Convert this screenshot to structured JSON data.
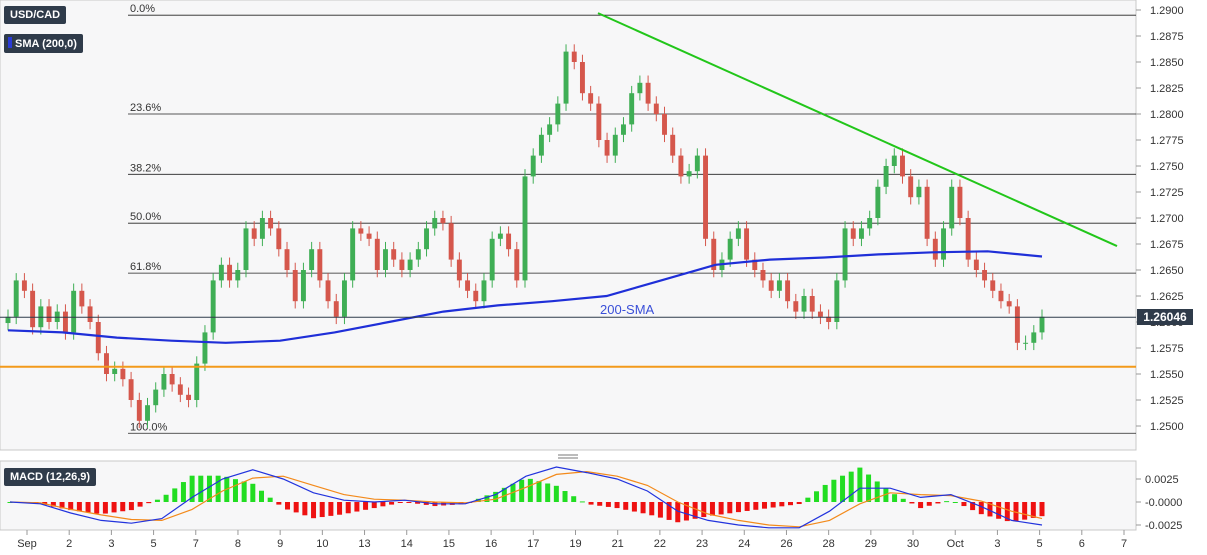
{
  "chart_data": {
    "type": "candlestick",
    "symbol": "USD/CAD",
    "indicator_label": "SMA (200,0)",
    "sma_label": "200-SMA",
    "last_price": "1.26046",
    "last_price_value": 1.26046,
    "support_level": 1.2557,
    "trendline": {
      "start": 1.2897,
      "end": 1.2673
    },
    "price_axis": {
      "min": 1.248,
      "max": 1.2905,
      "ticks": [
        "1.2900",
        "1.2875",
        "1.2850",
        "1.2825",
        "1.2800",
        "1.2775",
        "1.2750",
        "1.2725",
        "1.2700",
        "1.2675",
        "1.2650",
        "1.2625",
        "1.2600",
        "1.2575",
        "1.2550",
        "1.2525",
        "1.2500"
      ]
    },
    "fib_levels": [
      {
        "label": "0.0%",
        "value": 1.2895
      },
      {
        "label": "23.6%",
        "value": 1.28
      },
      {
        "label": "38.2%",
        "value": 1.2742
      },
      {
        "label": "50.0%",
        "value": 1.2695
      },
      {
        "label": "61.8%",
        "value": 1.2647
      },
      {
        "label": "100.0%",
        "value": 1.2493
      }
    ],
    "x_labels": [
      "Sep",
      "2",
      "3",
      "5",
      "7",
      "8",
      "9",
      "10",
      "13",
      "14",
      "15",
      "16",
      "17",
      "19",
      "21",
      "22",
      "23",
      "24",
      "26",
      "28",
      "29",
      "30",
      "Oct",
      "3",
      "5",
      "6",
      "7"
    ],
    "candles_close": [
      1.2605,
      1.264,
      1.263,
      1.2595,
      1.2615,
      1.26,
      1.261,
      1.259,
      1.263,
      1.2615,
      1.26,
      1.257,
      1.255,
      1.2555,
      1.2545,
      1.2525,
      1.2505,
      1.252,
      1.2535,
      1.255,
      1.254,
      1.253,
      1.2525,
      1.256,
      1.259,
      1.264,
      1.2655,
      1.264,
      1.265,
      1.269,
      1.268,
      1.27,
      1.269,
      1.267,
      1.265,
      1.262,
      1.265,
      1.267,
      1.264,
      1.262,
      1.2605,
      1.264,
      1.269,
      1.2685,
      1.268,
      1.265,
      1.267,
      1.266,
      1.265,
      1.266,
      1.267,
      1.269,
      1.27,
      1.2695,
      1.266,
      1.264,
      1.263,
      1.262,
      1.264,
      1.268,
      1.2685,
      1.267,
      1.264,
      1.274,
      1.276,
      1.278,
      1.279,
      1.281,
      1.286,
      1.285,
      1.282,
      1.281,
      1.2775,
      1.276,
      1.278,
      1.279,
      1.282,
      1.283,
      1.281,
      1.28,
      1.278,
      1.276,
      1.274,
      1.2745,
      1.276,
      1.268,
      1.265,
      1.266,
      1.268,
      1.269,
      1.266,
      1.265,
      1.264,
      1.263,
      1.264,
      1.262,
      1.261,
      1.2625,
      1.261,
      1.2605,
      1.26,
      1.264,
      1.269,
      1.268,
      1.269,
      1.27,
      1.273,
      1.275,
      1.276,
      1.274,
      1.272,
      1.273,
      1.268,
      1.266,
      1.269,
      1.273,
      1.27,
      1.266,
      1.265,
      1.264,
      1.263,
      1.262,
      1.2615,
      1.258,
      1.258,
      1.259,
      1.2605
    ],
    "sma200": [
      1.2592,
      1.259,
      1.2585,
      1.2582,
      1.258,
      1.2582,
      1.259,
      1.26,
      1.261,
      1.2616,
      1.262,
      1.2625,
      1.264,
      1.2655,
      1.266,
      1.2662,
      1.2665,
      1.2667,
      1.2668,
      1.2663
    ],
    "macd": {
      "label": "MACD (12,26,9)",
      "axis": {
        "min": -0.0029,
        "max": 0.0039,
        "ticks": [
          "0.0025",
          "-0.0000",
          "-0.0025"
        ]
      },
      "macd_line": [
        0.0,
        -0.0002,
        -0.0012,
        -0.002,
        -0.0023,
        -0.0018,
        0.0005,
        0.0025,
        0.0035,
        0.0025,
        0.001,
        0.0002,
        0.0,
        0.0002,
        -0.0002,
        -0.0002,
        0.0008,
        0.0028,
        0.0038,
        0.0032,
        0.0025,
        0.0012,
        -0.001,
        -0.002,
        -0.0025,
        -0.0028,
        -0.0028,
        -0.001,
        0.0015,
        0.0015,
        0.0005,
        0.0008,
        -0.0005,
        -0.002,
        -0.0025
      ],
      "signal_line": [
        0.0,
        -0.0001,
        -0.0008,
        -0.0014,
        -0.0019,
        -0.002,
        -0.0008,
        0.0012,
        0.0026,
        0.0028,
        0.0018,
        0.0008,
        0.0003,
        0.0002,
        0.0,
        -0.0001,
        0.0003,
        0.0016,
        0.003,
        0.0033,
        0.0028,
        0.0018,
        0.0,
        -0.0013,
        -0.002,
        -0.0025,
        -0.0027,
        -0.002,
        -0.0002,
        0.001,
        0.0008,
        0.0007,
        0.0001,
        -0.001,
        -0.0018
      ]
    }
  }
}
